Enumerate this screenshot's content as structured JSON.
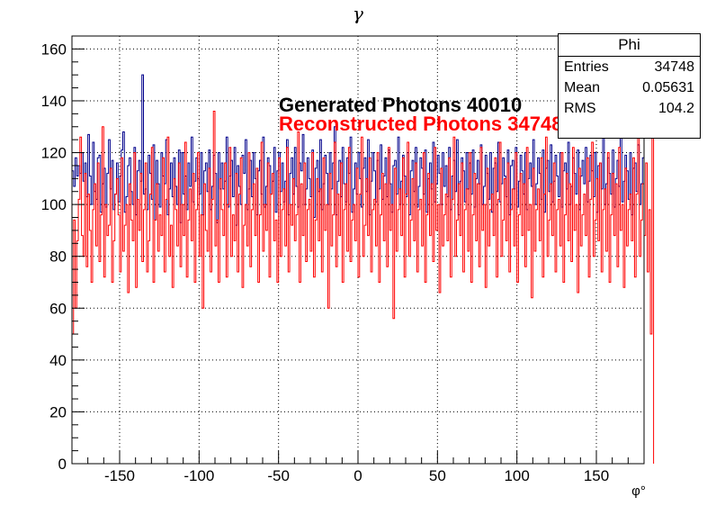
{
  "chart_data": {
    "type": "histogram",
    "title": "γ",
    "xlabel": "φ°",
    "ylabel": "",
    "xlim": [
      -180,
      180
    ],
    "ylim": [
      0,
      165
    ],
    "x_ticks": [
      -150,
      -100,
      -50,
      0,
      50,
      100,
      150
    ],
    "y_ticks": [
      0,
      20,
      40,
      60,
      80,
      100,
      120,
      140,
      160
    ],
    "grid": true,
    "annotations": [
      {
        "text": "Generated Photons 40010",
        "color": "#000000"
      },
      {
        "text": "Reconstructed Photons 34748",
        "color": "#ff0000"
      }
    ],
    "stats_box": {
      "title": "Phi",
      "rows": [
        {
          "key": "Entries",
          "value": "34748"
        },
        {
          "key": "Mean",
          "value": "0.05631"
        },
        {
          "key": "RMS",
          "value": "104.2"
        }
      ]
    },
    "bin_edges_start": -180,
    "bin_width": 1,
    "series": [
      {
        "color": "#00008b",
        "values": [
          113,
          107,
          118,
          111,
          115,
          112,
          120,
          109,
          116,
          103,
          127,
          111,
          100,
          124,
          105,
          102,
          118,
          119,
          97,
          108,
          114,
          99,
          112,
          125,
          106,
          117,
          98,
          104,
          116,
          101,
          111,
          121,
          128,
          97,
          103,
          115,
          118,
          105,
          100,
          122,
          96,
          113,
          117,
          109,
          150,
          104,
          106,
          98,
          119,
          112,
          102,
          123,
          94,
          117,
          108,
          99,
          120,
          111,
          108,
          125,
          96,
          106,
          116,
          103,
          118,
          107,
          100,
          121,
          93,
          120,
          104,
          111,
          98,
          116,
          107,
          126,
          101,
          109,
          118,
          110,
          104,
          120,
          96,
          113,
          116,
          105,
          121,
          98,
          107,
          119,
          112,
          93,
          120,
          106,
          116,
          106,
          109,
          126,
          99,
          111,
          117,
          103,
          122,
          92,
          115,
          107,
          100,
          119,
          112,
          125,
          98,
          106,
          117,
          103,
          120,
          110,
          96,
          113,
          117,
          104,
          126,
          99,
          107,
          118,
          115,
          104,
          109,
          122,
          97,
          113,
          120,
          105,
          116,
          101,
          109,
          125,
          96,
          112,
          118,
          104,
          122,
          107,
          99,
          116,
          113,
          127,
          100,
          106,
          118,
          110,
          103,
          121,
          95,
          114,
          117,
          105,
          125,
          98,
          108,
          119,
          112,
          100,
          120,
          106,
          116,
          130,
          96,
          109,
          117,
          103,
          122,
          108,
          101,
          118,
          112,
          126,
          97,
          106,
          116,
          104,
          120,
          110,
          99,
          114,
          118,
          105,
          125,
          96,
          109,
          120,
          113,
          101,
          117,
          106,
          123,
          102,
          111,
          118,
          103,
          121,
          108,
          97,
          115,
          117,
          104,
          126,
          100,
          109,
          119,
          111,
          103,
          120,
          96,
          113,
          117,
          105,
          122,
          99,
          107,
          118,
          114,
          104,
          121,
          97,
          110,
          116,
          106,
          124,
          101,
          108,
          119,
          112,
          100,
          120,
          107,
          115,
          103,
          122,
          98,
          111,
          117,
          105,
          125,
          96,
          109,
          118,
          113,
          101,
          120,
          106,
          116,
          104,
          121,
          99,
          110,
          117,
          108,
          123,
          100,
          107,
          119,
          112,
          102,
          120,
          97,
          114,
          116,
          105,
          124,
          101,
          108,
          118,
          111,
          103,
          121,
          96,
          115,
          117,
          106,
          122,
          99,
          109,
          119,
          113,
          104,
          120,
          98,
          110,
          116,
          107,
          125,
          100,
          108,
          118,
          112,
          102,
          121,
          97,
          114,
          117,
          105,
          123,
          101,
          109,
          119,
          111,
          103,
          120,
          99,
          113,
          116,
          106,
          124,
          100,
          107,
          118,
          112,
          104,
          121,
          98,
          111,
          117,
          108,
          122,
          101,
          109,
          119,
          113,
          103,
          120,
          97,
          115,
          116,
          106,
          148,
          100,
          108,
          118,
          112,
          104,
          121,
          99,
          110,
          117,
          107,
          126,
          101,
          109,
          119,
          113,
          102,
          120,
          96,
          114,
          116,
          105,
          123,
          100,
          108,
          118
        ]
      },
      {
        "color": "#ff0000",
        "values": [
          50,
          94,
          60,
          86,
          102,
          126,
          88,
          80,
          112,
          76,
          104,
          90,
          70,
          98,
          108,
          84,
          116,
          78,
          96,
          130,
          72,
          100,
          88,
          92,
          114,
          70,
          86,
          104,
          110,
          96,
          74,
          118,
          82,
          92,
          100,
          66,
          108,
          94,
          86,
          120,
          68,
          102,
          90,
          112,
          78,
          98,
          116,
          74,
          86,
          104,
          122,
          70,
          94,
          108,
          82,
          96,
          88,
          118,
          74,
          102,
          126,
          80,
          92,
          68,
          110,
          98,
          84,
          116,
          76,
          100,
          88,
          124,
          72,
          94,
          106,
          86,
          112,
          70,
          98,
          120,
          80,
          96,
          60,
          108,
          90,
          82,
          114,
          74,
          102,
          136,
          84,
          94,
          70,
          110,
          98,
          88,
          116,
          72,
          100,
          122,
          80,
          96,
          86,
          112,
          74,
          104,
          118,
          68,
          92,
          100,
          84,
          120,
          76,
          98,
          108,
          88,
          114,
          70,
          96,
          124,
          82,
          100,
          90,
          116,
          72,
          104,
          112,
          86,
          94,
          70,
          118,
          80,
          98,
          106,
          84,
          122,
          74,
          100,
          92,
          110,
          86,
          96,
          128,
          70,
          108,
          88,
          116,
          78,
          98,
          102,
          82,
          120,
          72,
          94,
          110,
          86,
          106,
          74,
          118,
          90,
          100,
          60,
          112,
          84,
          96,
          124,
          76,
          104,
          88,
          116,
          70,
          98,
          108,
          82,
          122,
          78,
          94,
          100,
          86,
          114,
          72,
          104,
          126,
          80,
          92,
          110,
          88,
          118,
          74,
          98,
          102,
          84,
          120,
          70,
          96,
          112,
          86,
          108,
          76,
          122,
          90,
          100,
          56,
          114,
          82,
          98,
          106,
          88,
          118,
          72,
          104,
          124,
          80,
          94,
          110,
          86,
          116,
          74,
          98,
          102,
          84,
          120,
          70,
          96,
          112,
          88,
          108,
          78,
          122,
          90,
          100,
          66,
          114,
          84,
          96,
          104,
          86,
          118,
          72,
          102,
          126,
          80,
          94,
          108,
          88,
          116,
          74,
          98,
          106,
          82,
          120,
          70,
          96,
          112,
          86,
          108,
          76,
          122,
          90,
          100,
          68,
          114,
          84,
          98,
          104,
          88,
          118,
          72,
          102,
          124,
          80,
          94,
          110,
          86,
          116,
          74,
          98,
          106,
          84,
          120,
          70,
          96,
          112,
          88,
          108,
          76,
          122,
          90,
          100,
          64,
          114,
          82,
          98,
          106,
          86,
          118,
          72,
          104,
          126,
          80,
          94,
          108,
          88,
          116,
          74,
          98,
          102,
          84,
          120,
          70,
          96,
          112,
          86,
          108,
          78,
          122,
          90,
          100,
          66,
          114,
          84,
          96,
          104,
          88,
          118,
          72,
          102,
          124,
          80,
          94,
          110,
          86,
          116,
          74,
          98,
          106,
          82,
          120,
          70,
          96,
          112,
          88,
          108,
          76,
          122,
          90,
          100,
          68,
          114,
          84,
          98,
          104,
          86,
          118,
          72,
          104,
          126,
          80,
          94,
          108,
          88,
          116,
          74,
          98,
          50,
          127
        ]
      }
    ]
  }
}
